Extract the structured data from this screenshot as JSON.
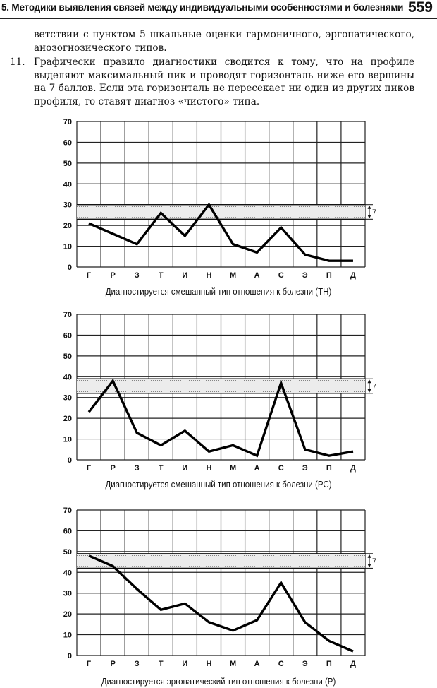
{
  "header": {
    "running_title": "5. Методики выявления связей между индивидуальными особенностями и болезнями",
    "page_number": "559"
  },
  "body_text": {
    "continuation": "ветствии с пунктом 5 шкальные оценки гармоничного, эргопатического, анозогнозического типов.",
    "item_number": "11.",
    "item_text": "Графически правило диагностики сводится к тому, что на профиле выделяют максимальный пик и проводят горизонталь ниже его вершины на 7 баллов. Если эта горизонталь не пересекает ни один из других пиков профиля, то ставят диагноз «чистого» типа."
  },
  "chart_data": [
    {
      "type": "line",
      "categories": [
        "Г",
        "Р",
        "З",
        "Т",
        "И",
        "Н",
        "М",
        "А",
        "С",
        "Э",
        "П",
        "Д"
      ],
      "values": [
        21,
        16,
        11,
        26,
        15,
        30,
        11,
        7,
        19,
        6,
        3,
        3
      ],
      "ylim": [
        0,
        70
      ],
      "yticks": [
        0,
        10,
        20,
        30,
        40,
        50,
        60,
        70
      ],
      "band": {
        "top": 30,
        "bottom": 23
      },
      "band_label": "7",
      "grid": true,
      "caption": "Диагностируется смешанный тип отношения к болезни (ТН)"
    },
    {
      "type": "line",
      "categories": [
        "Г",
        "Р",
        "З",
        "Т",
        "И",
        "Н",
        "М",
        "А",
        "С",
        "Э",
        "П",
        "Д"
      ],
      "values": [
        23,
        38,
        13,
        7,
        14,
        4,
        7,
        2,
        37,
        5,
        2,
        4
      ],
      "ylim": [
        0,
        70
      ],
      "yticks": [
        0,
        10,
        20,
        30,
        40,
        50,
        60,
        70
      ],
      "band": {
        "top": 39,
        "bottom": 32
      },
      "band_label": "7",
      "grid": true,
      "caption": "Диагностируется смешанный тип отношения к болезни (РС)"
    },
    {
      "type": "line",
      "categories": [
        "Г",
        "Р",
        "З",
        "Т",
        "И",
        "Н",
        "М",
        "А",
        "С",
        "Э",
        "П",
        "Д"
      ],
      "values": [
        48,
        43,
        32,
        22,
        25,
        16,
        12,
        17,
        35,
        16,
        7,
        2
      ],
      "ylim": [
        0,
        70
      ],
      "yticks": [
        0,
        10,
        20,
        30,
        40,
        50,
        60,
        70
      ],
      "band": {
        "top": 49,
        "bottom": 42
      },
      "band_label": "7",
      "grid": true,
      "caption": "Диагностируется эргопатический тип отношения к болезни (Р)"
    }
  ]
}
